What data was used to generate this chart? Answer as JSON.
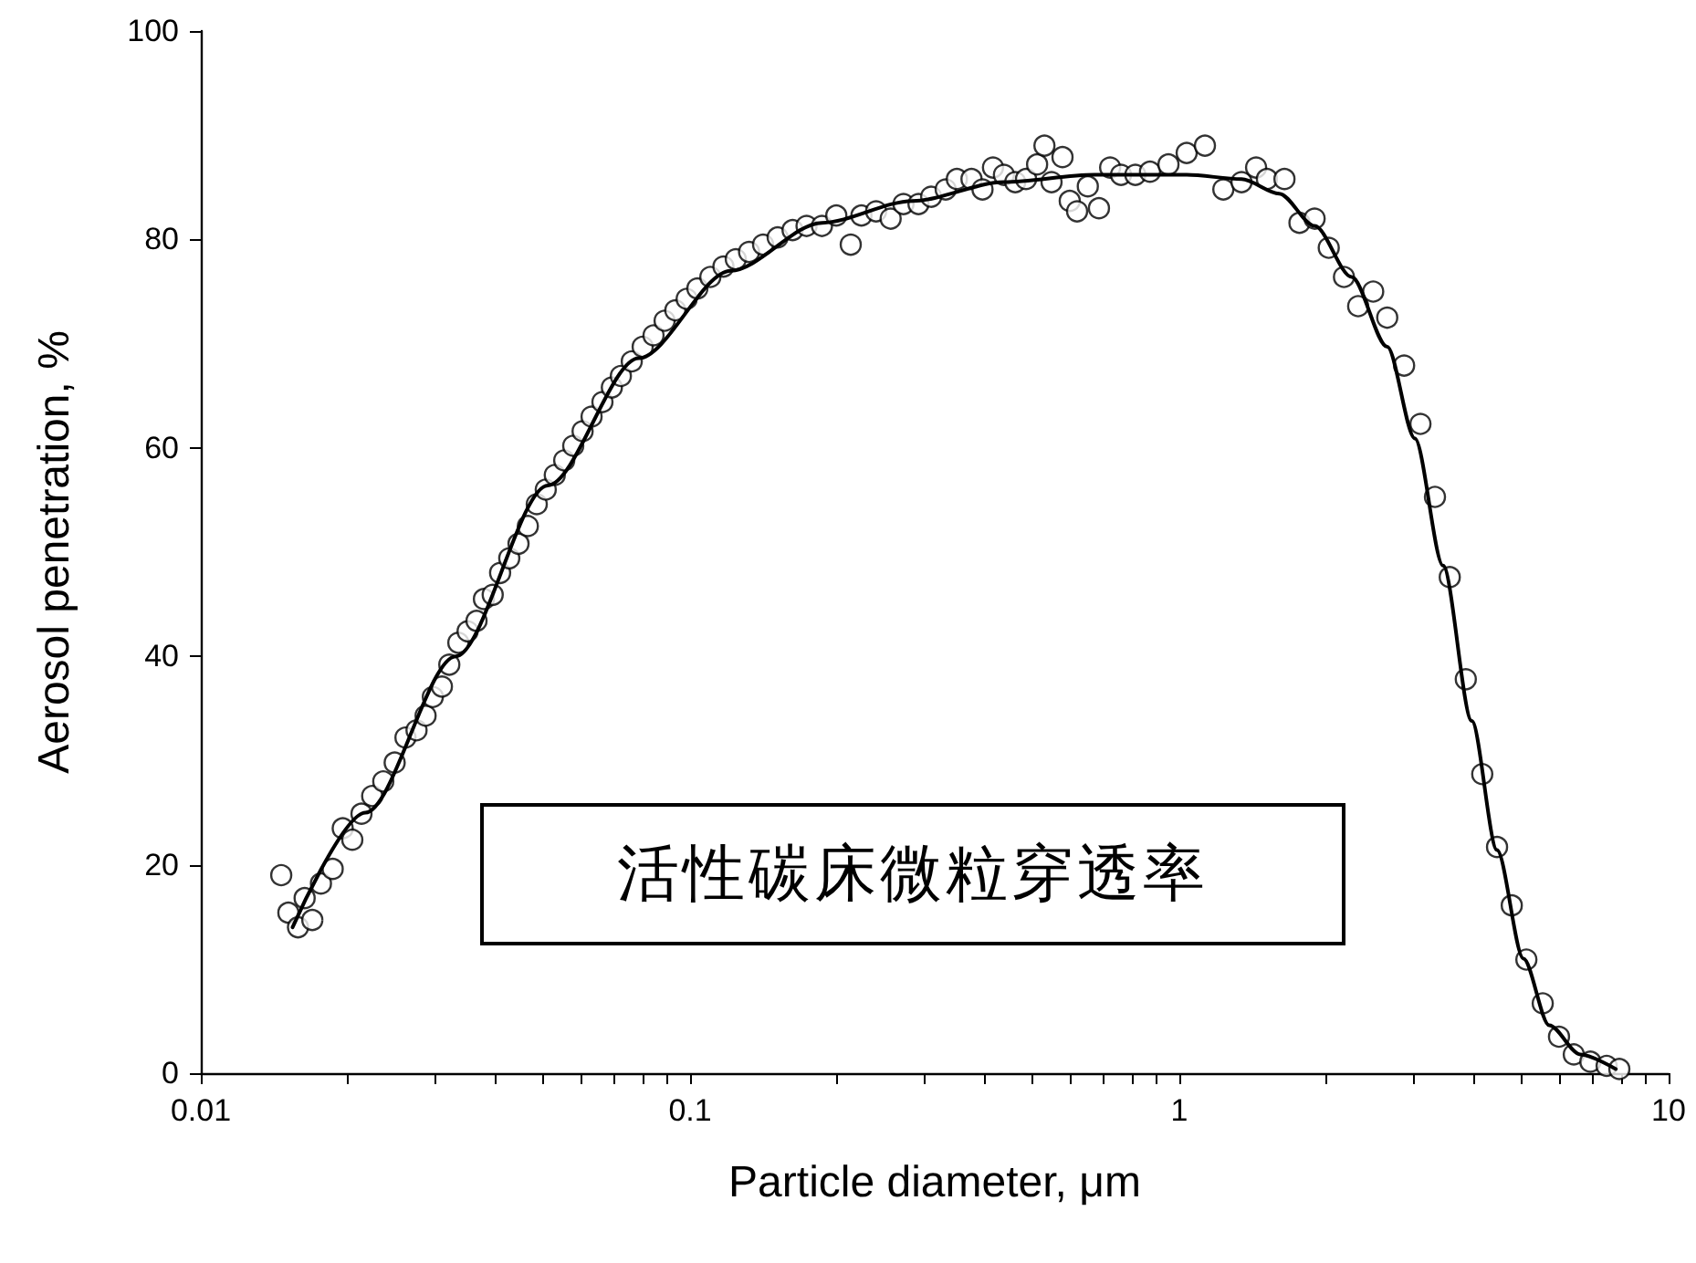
{
  "chart_data": {
    "type": "scatter",
    "xlabel": "Particle diameter, μm",
    "ylabel": "Aerosol penetration, %",
    "annotations": [
      "活性碳床微粒穿透率"
    ],
    "log": "x",
    "grid": false,
    "line_style": "solid",
    "xlim": [
      0.01,
      10
    ],
    "ylim": [
      0,
      100
    ],
    "xticks": [
      0.01,
      {
        "value": 0.02,
        "label": null
      },
      {
        "value": 0.03,
        "label": null
      },
      {
        "value": 0.04,
        "label": null
      },
      {
        "value": 0.05,
        "label": null
      },
      {
        "value": 0.06,
        "label": null
      },
      {
        "value": 0.07,
        "label": null
      },
      {
        "value": 0.08,
        "label": null
      },
      {
        "value": 0.09,
        "label": null
      },
      0.1,
      {
        "value": 0.2,
        "label": null
      },
      {
        "value": 0.3,
        "label": null
      },
      {
        "value": 0.4,
        "label": null
      },
      {
        "value": 0.5,
        "label": null
      },
      {
        "value": 0.6,
        "label": null
      },
      {
        "value": 0.7,
        "label": null
      },
      {
        "value": 0.8,
        "label": null
      },
      {
        "value": 0.9,
        "label": null
      },
      1,
      {
        "value": 2,
        "label": null
      },
      {
        "value": 3,
        "label": null
      },
      {
        "value": 4,
        "label": null
      },
      {
        "value": 5,
        "label": null
      },
      {
        "value": 6,
        "label": null
      },
      {
        "value": 7,
        "label": null
      },
      {
        "value": 8,
        "label": null
      },
      {
        "value": 9,
        "label": null
      },
      10
    ],
    "yticks": [
      0,
      20,
      40,
      60,
      80,
      100
    ],
    "series": [
      {
        "color": "#000000",
        "marker": "circle",
        "x": [
          0.0146,
          0.0151,
          0.0158,
          0.0163,
          0.0169,
          0.0176,
          0.0186,
          0.0195,
          0.0204,
          0.0213,
          0.0224,
          0.0236,
          0.0249,
          0.0262,
          0.0276,
          0.0288,
          0.0298,
          0.0311,
          0.0322,
          0.0336,
          0.0351,
          0.0366,
          0.0379,
          0.0395,
          0.0409,
          0.0427,
          0.0446,
          0.0466,
          0.0486,
          0.0507,
          0.0529,
          0.0553,
          0.0577,
          0.0603,
          0.0629,
          0.0662,
          0.0692,
          0.0722,
          0.076,
          0.08,
          0.0842,
          0.0887,
          0.0933,
          0.0984,
          0.1035,
          0.11,
          0.117,
          0.124,
          0.132,
          0.141,
          0.151,
          0.162,
          0.173,
          0.186,
          0.199,
          0.213,
          0.224,
          0.24,
          0.257,
          0.273,
          0.293,
          0.311,
          0.333,
          0.351,
          0.376,
          0.396,
          0.416,
          0.438,
          0.462,
          0.486,
          0.512,
          0.53,
          0.548,
          0.577,
          0.597,
          0.618,
          0.65,
          0.685,
          0.722,
          0.76,
          0.813,
          0.871,
          0.95,
          1.035,
          1.128,
          1.23,
          1.34,
          1.435,
          1.51,
          1.64,
          1.76,
          1.89,
          2.02,
          2.17,
          2.32,
          2.49,
          2.66,
          2.88,
          3.11,
          3.33,
          3.57,
          3.85,
          4.16,
          4.46,
          4.78,
          5.12,
          5.53,
          5.97,
          6.4,
          6.92,
          7.47,
          7.93
        ],
        "values": [
          19,
          15.4,
          14,
          16.8,
          14.7,
          18.2,
          19.6,
          23.5,
          22.4,
          24.9,
          26.6,
          28,
          29.8,
          32.2,
          32.9,
          34.3,
          36.1,
          37.1,
          39.2,
          41.3,
          42.4,
          43.4,
          45.5,
          45.9,
          48,
          49.4,
          50.8,
          52.5,
          54.6,
          56,
          57.4,
          58.8,
          60.2,
          61.6,
          63,
          64.4,
          65.8,
          66.9,
          68.3,
          69.7,
          70.8,
          72.2,
          73.2,
          74.3,
          75.3,
          76.4,
          77.4,
          78.1,
          78.8,
          79.5,
          80.2,
          80.9,
          81.3,
          81.3,
          82.3,
          79.5,
          82.3,
          82.7,
          82,
          83.4,
          83.4,
          84.1,
          84.8,
          85.8,
          85.8,
          84.8,
          86.9,
          86.2,
          85.5,
          85.8,
          87.2,
          89,
          85.5,
          87.9,
          83.7,
          82.7,
          85.1,
          83,
          86.9,
          86.2,
          86.2,
          86.5,
          87.2,
          88.3,
          89,
          84.8,
          85.5,
          86.9,
          85.8,
          85.8,
          81.6,
          82,
          79.2,
          76.4,
          73.6,
          75,
          72.5,
          67.9,
          62.3,
          55.3,
          47.6,
          37.8,
          28.7,
          21.7,
          16.1,
          10.9,
          6.7,
          3.5,
          1.8,
          1.1,
          0.7,
          0.4
        ]
      },
      {
        "type": "line",
        "color": "#000000",
        "marker": "none",
        "x": [
          0.0154,
          0.0217,
          0.0332,
          0.0512,
          0.0785,
          0.121,
          0.186,
          0.285,
          0.438,
          0.67,
          1.035,
          1.34,
          1.6,
          1.89,
          2.25,
          2.66,
          3.03,
          3.46,
          3.96,
          4.46,
          5.05,
          5.7,
          6.6,
          7.8
        ],
        "values": [
          14,
          25,
          40,
          56.4,
          68.6,
          77,
          81.6,
          83.7,
          85.5,
          86.2,
          86.2,
          85.8,
          84.4,
          81.3,
          76.4,
          69.7,
          60.9,
          48.7,
          33.8,
          21.4,
          11,
          4.6,
          1.8,
          0.4
        ]
      }
    ]
  }
}
